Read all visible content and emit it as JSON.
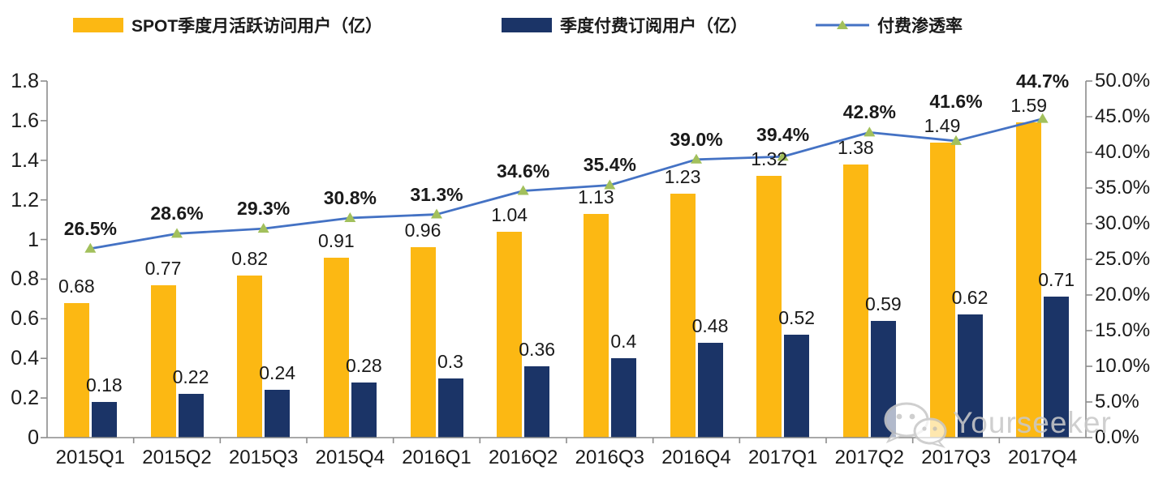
{
  "legend": [
    {
      "label": "SPOT季度月活跃访问用户（亿）",
      "color": "#FCB813",
      "type": "bar"
    },
    {
      "label": "季度付费订阅用户（亿）",
      "color": "#1B3467",
      "type": "bar"
    },
    {
      "label": "付费渗透率",
      "color": "#4472C4",
      "marker_color": "#A2C05C",
      "type": "line"
    }
  ],
  "watermark": {
    "text": "Yourseeker",
    "icon": "wechat-icon"
  },
  "colors": {
    "mau_bar": "#FCB813",
    "subs_bar": "#1B3467",
    "line": "#4472C4",
    "marker": "#A2C05C",
    "axis": "#8c8c8c",
    "text": "#1a1a1a",
    "watermark": "#c9c9c9"
  },
  "chart_data": {
    "type": "bar",
    "subtype": "grouped bars + line on secondary axis",
    "categories": [
      "2015Q1",
      "2015Q2",
      "2015Q3",
      "2015Q4",
      "2016Q1",
      "2016Q2",
      "2016Q3",
      "2016Q4",
      "2017Q1",
      "2017Q2",
      "2017Q3",
      "2017Q4"
    ],
    "series": [
      {
        "name": "SPOT季度月活跃访问用户（亿）",
        "type": "bar",
        "axis": "left",
        "color": "#FCB813",
        "values": [
          0.68,
          0.77,
          0.82,
          0.91,
          0.96,
          1.04,
          1.13,
          1.23,
          1.32,
          1.38,
          1.49,
          1.59
        ],
        "value_labels": [
          "0.68",
          "0.77",
          "0.82",
          "0.91",
          "0.96",
          "1.04",
          "1.13",
          "1.23",
          "1.32",
          "1.38",
          "1.49",
          "1.59"
        ]
      },
      {
        "name": "季度付费订阅用户（亿）",
        "type": "bar",
        "axis": "left",
        "color": "#1B3467",
        "values": [
          0.18,
          0.22,
          0.24,
          0.28,
          0.3,
          0.36,
          0.4,
          0.48,
          0.52,
          0.59,
          0.62,
          0.71
        ],
        "value_labels": [
          "0.18",
          "0.22",
          "0.24",
          "0.28",
          "0.3",
          "0.36",
          "0.4",
          "0.48",
          "0.52",
          "0.59",
          "0.62",
          "0.71"
        ]
      },
      {
        "name": "付费渗透率",
        "type": "line",
        "axis": "right",
        "color": "#4472C4",
        "marker": "triangle",
        "marker_color": "#A2C05C",
        "values": [
          26.5,
          28.6,
          29.3,
          30.8,
          31.3,
          34.6,
          35.4,
          39.0,
          39.4,
          42.8,
          41.6,
          44.7
        ],
        "value_labels": [
          "26.5%",
          "28.6%",
          "29.3%",
          "30.8%",
          "31.3%",
          "34.6%",
          "35.4%",
          "39.0%",
          "39.4%",
          "42.8%",
          "41.6%",
          "44.7%"
        ]
      }
    ],
    "left_axis": {
      "min": 0,
      "max": 1.8,
      "step": 0.2,
      "ticks": [
        "0",
        "0.2",
        "0.4",
        "0.6",
        "0.8",
        "1",
        "1.2",
        "1.4",
        "1.6",
        "1.8"
      ]
    },
    "right_axis": {
      "min": 0,
      "max": 50,
      "step": 5,
      "ticks": [
        "0.0%",
        "5.0%",
        "10.0%",
        "15.0%",
        "20.0%",
        "25.0%",
        "30.0%",
        "35.0%",
        "40.0%",
        "45.0%",
        "50.0%"
      ]
    },
    "grid": false,
    "legend_position": "top",
    "title": ""
  }
}
